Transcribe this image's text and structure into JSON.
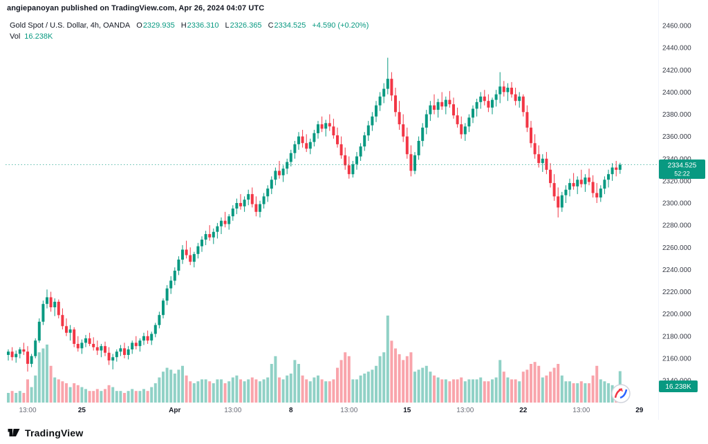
{
  "attribution": "angiepanoyan published on TradingView.com, Apr 26, 2024 04:07 UTC",
  "legend": {
    "symbol": "Gold Spot / U.S. Dollar, 4h, OANDA",
    "ohlc": [
      {
        "k": "O",
        "v": "2329.935"
      },
      {
        "k": "H",
        "v": "2336.310"
      },
      {
        "k": "L",
        "v": "2326.365"
      },
      {
        "k": "C",
        "v": "2334.525"
      }
    ],
    "change": "+4.590 (+0.20%)",
    "vol_label": "Vol",
    "vol_value": "16.238K"
  },
  "price_badge": {
    "price": "2334.525",
    "countdown": "52:22"
  },
  "volume_badge": "16.238K",
  "price_axis": {
    "labels": [
      "2460.000",
      "2440.000",
      "2420.000",
      "2400.000",
      "2380.000",
      "2360.000",
      "2340.000",
      "2320.000",
      "2300.000",
      "2280.000",
      "2260.000",
      "2240.000",
      "2220.000",
      "2200.000",
      "2180.000",
      "2160.000",
      "2140.000"
    ]
  },
  "time_axis": [
    {
      "label": "13:00",
      "i": 5,
      "minor": true
    },
    {
      "label": "25",
      "i": 19,
      "minor": false
    },
    {
      "label": "Apr",
      "i": 43,
      "minor": false
    },
    {
      "label": "13:00",
      "i": 58,
      "minor": true
    },
    {
      "label": "8",
      "i": 73,
      "minor": false
    },
    {
      "label": "13:00",
      "i": 88,
      "minor": true
    },
    {
      "label": "15",
      "i": 103,
      "minor": false
    },
    {
      "label": "13:00",
      "i": 118,
      "minor": true
    },
    {
      "label": "22",
      "i": 133,
      "minor": false
    },
    {
      "label": "13:00",
      "i": 148,
      "minor": true
    },
    {
      "label": "29",
      "i": 163,
      "minor": false
    }
  ],
  "footer": {
    "brand": "TradingView"
  },
  "colors": {
    "up": "#089981",
    "down": "#f23645",
    "axis_text": "#363a45",
    "badge": "#089981"
  },
  "chart_data": {
    "type": "candlestick+volume",
    "title": "Gold Spot / U.S. Dollar, 4h, OANDA",
    "timeframe": "4h",
    "ylim": [
      2140,
      2460
    ],
    "price_line": 2334.525,
    "last_bar": {
      "open": 2329.935,
      "high": 2336.31,
      "low": 2326.365,
      "close": 2334.525,
      "change": 4.59,
      "change_pct": 0.2,
      "volume_k": 16.238
    },
    "volume_unit": "K",
    "candles": [
      [
        2163,
        2168,
        2158,
        2166,
        5
      ],
      [
        2166,
        2170,
        2158,
        2161,
        6
      ],
      [
        2161,
        2167,
        2156,
        2164,
        5
      ],
      [
        2164,
        2170,
        2160,
        2168,
        6
      ],
      [
        2168,
        2174,
        2163,
        2166,
        5
      ],
      [
        2166,
        2171,
        2148,
        2155,
        12
      ],
      [
        2155,
        2164,
        2152,
        2162,
        8
      ],
      [
        2162,
        2178,
        2160,
        2176,
        14
      ],
      [
        2176,
        2196,
        2174,
        2193,
        26
      ],
      [
        2193,
        2212,
        2190,
        2209,
        28
      ],
      [
        2209,
        2222,
        2205,
        2215,
        30
      ],
      [
        2215,
        2220,
        2202,
        2206,
        19
      ],
      [
        2206,
        2214,
        2198,
        2211,
        13
      ],
      [
        2211,
        2213,
        2196,
        2199,
        12
      ],
      [
        2199,
        2205,
        2186,
        2189,
        11
      ],
      [
        2189,
        2196,
        2180,
        2183,
        10
      ],
      [
        2183,
        2190,
        2176,
        2186,
        8
      ],
      [
        2186,
        2188,
        2170,
        2173,
        10
      ],
      [
        2173,
        2180,
        2166,
        2169,
        9
      ],
      [
        2169,
        2177,
        2164,
        2174,
        8
      ],
      [
        2174,
        2181,
        2170,
        2178,
        7
      ],
      [
        2178,
        2183,
        2171,
        2173,
        6
      ],
      [
        2173,
        2179,
        2167,
        2170,
        6
      ],
      [
        2170,
        2176,
        2163,
        2167,
        7
      ],
      [
        2167,
        2173,
        2161,
        2171,
        6
      ],
      [
        2171,
        2175,
        2162,
        2165,
        7
      ],
      [
        2165,
        2170,
        2154,
        2158,
        9
      ],
      [
        2158,
        2164,
        2150,
        2161,
        8
      ],
      [
        2161,
        2168,
        2157,
        2166,
        6
      ],
      [
        2166,
        2172,
        2162,
        2169,
        6
      ],
      [
        2169,
        2174,
        2160,
        2163,
        5
      ],
      [
        2163,
        2171,
        2159,
        2168,
        6
      ],
      [
        2168,
        2176,
        2164,
        2174,
        7
      ],
      [
        2174,
        2180,
        2168,
        2171,
        6
      ],
      [
        2171,
        2178,
        2166,
        2176,
        6
      ],
      [
        2176,
        2183,
        2172,
        2180,
        7
      ],
      [
        2180,
        2185,
        2173,
        2176,
        6
      ],
      [
        2176,
        2184,
        2172,
        2182,
        8
      ],
      [
        2182,
        2192,
        2179,
        2190,
        10
      ],
      [
        2190,
        2202,
        2187,
        2199,
        13
      ],
      [
        2199,
        2214,
        2196,
        2212,
        16
      ],
      [
        2212,
        2226,
        2208,
        2223,
        18
      ],
      [
        2223,
        2234,
        2218,
        2230,
        17
      ],
      [
        2230,
        2242,
        2226,
        2239,
        15
      ],
      [
        2239,
        2252,
        2235,
        2249,
        17
      ],
      [
        2249,
        2262,
        2245,
        2258,
        19
      ],
      [
        2258,
        2266,
        2250,
        2253,
        14
      ],
      [
        2253,
        2260,
        2244,
        2247,
        11
      ],
      [
        2247,
        2256,
        2242,
        2254,
        10
      ],
      [
        2254,
        2264,
        2250,
        2261,
        11
      ],
      [
        2261,
        2270,
        2256,
        2267,
        12
      ],
      [
        2267,
        2275,
        2262,
        2272,
        12
      ],
      [
        2272,
        2280,
        2266,
        2269,
        11
      ],
      [
        2269,
        2277,
        2263,
        2274,
        10
      ],
      [
        2274,
        2282,
        2268,
        2279,
        12
      ],
      [
        2279,
        2287,
        2272,
        2284,
        12
      ],
      [
        2284,
        2292,
        2278,
        2281,
        10
      ],
      [
        2281,
        2290,
        2276,
        2288,
        11
      ],
      [
        2288,
        2298,
        2284,
        2295,
        13
      ],
      [
        2295,
        2304,
        2290,
        2300,
        14
      ],
      [
        2300,
        2308,
        2294,
        2297,
        12
      ],
      [
        2297,
        2306,
        2292,
        2303,
        11
      ],
      [
        2303,
        2312,
        2298,
        2308,
        12
      ],
      [
        2308,
        2314,
        2296,
        2299,
        13
      ],
      [
        2299,
        2306,
        2288,
        2292,
        12
      ],
      [
        2292,
        2302,
        2287,
        2299,
        11
      ],
      [
        2299,
        2309,
        2295,
        2306,
        12
      ],
      [
        2306,
        2316,
        2301,
        2313,
        13
      ],
      [
        2313,
        2324,
        2308,
        2321,
        20
      ],
      [
        2321,
        2332,
        2316,
        2329,
        24
      ],
      [
        2329,
        2338,
        2322,
        2325,
        13
      ],
      [
        2325,
        2334,
        2319,
        2331,
        12
      ],
      [
        2331,
        2340,
        2326,
        2337,
        14
      ],
      [
        2337,
        2348,
        2333,
        2345,
        15
      ],
      [
        2345,
        2356,
        2340,
        2353,
        22
      ],
      [
        2353,
        2364,
        2348,
        2360,
        20
      ],
      [
        2360,
        2366,
        2350,
        2354,
        14
      ],
      [
        2354,
        2362,
        2346,
        2349,
        12
      ],
      [
        2349,
        2358,
        2344,
        2355,
        11
      ],
      [
        2355,
        2366,
        2351,
        2363,
        13
      ],
      [
        2363,
        2374,
        2358,
        2371,
        14
      ],
      [
        2371,
        2378,
        2364,
        2367,
        12
      ],
      [
        2367,
        2375,
        2360,
        2372,
        11
      ],
      [
        2372,
        2380,
        2365,
        2369,
        11
      ],
      [
        2369,
        2376,
        2358,
        2361,
        12
      ],
      [
        2361,
        2368,
        2350,
        2353,
        18
      ],
      [
        2353,
        2360,
        2340,
        2343,
        22
      ],
      [
        2343,
        2350,
        2330,
        2334,
        26
      ],
      [
        2334,
        2342,
        2322,
        2326,
        24
      ],
      [
        2326,
        2338,
        2323,
        2335,
        12
      ],
      [
        2335,
        2346,
        2330,
        2342,
        12
      ],
      [
        2342,
        2354,
        2338,
        2351,
        14
      ],
      [
        2351,
        2364,
        2347,
        2361,
        15
      ],
      [
        2361,
        2374,
        2356,
        2370,
        16
      ],
      [
        2370,
        2382,
        2365,
        2378,
        17
      ],
      [
        2378,
        2392,
        2373,
        2388,
        19
      ],
      [
        2388,
        2400,
        2383,
        2396,
        24
      ],
      [
        2396,
        2408,
        2390,
        2403,
        26
      ],
      [
        2403,
        2431,
        2398,
        2412,
        45
      ],
      [
        2412,
        2418,
        2392,
        2397,
        32
      ],
      [
        2397,
        2404,
        2378,
        2382,
        28
      ],
      [
        2382,
        2392,
        2366,
        2371,
        25
      ],
      [
        2371,
        2380,
        2355,
        2360,
        22
      ],
      [
        2360,
        2368,
        2340,
        2344,
        24
      ],
      [
        2344,
        2352,
        2324,
        2329,
        26
      ],
      [
        2329,
        2346,
        2326,
        2343,
        16
      ],
      [
        2343,
        2360,
        2339,
        2356,
        17
      ],
      [
        2356,
        2372,
        2351,
        2368,
        18
      ],
      [
        2368,
        2384,
        2362,
        2380,
        19
      ],
      [
        2380,
        2392,
        2374,
        2388,
        16
      ],
      [
        2388,
        2398,
        2380,
        2384,
        14
      ],
      [
        2384,
        2394,
        2377,
        2391,
        13
      ],
      [
        2391,
        2400,
        2384,
        2387,
        12
      ],
      [
        2387,
        2396,
        2380,
        2393,
        12
      ],
      [
        2393,
        2401,
        2386,
        2389,
        11
      ],
      [
        2389,
        2395,
        2376,
        2379,
        12
      ],
      [
        2379,
        2386,
        2368,
        2371,
        12
      ],
      [
        2371,
        2378,
        2358,
        2362,
        13
      ],
      [
        2362,
        2372,
        2356,
        2369,
        11
      ],
      [
        2369,
        2380,
        2364,
        2377,
        12
      ],
      [
        2377,
        2388,
        2372,
        2385,
        12
      ],
      [
        2385,
        2394,
        2378,
        2391,
        12
      ],
      [
        2391,
        2400,
        2385,
        2396,
        13
      ],
      [
        2396,
        2402,
        2388,
        2392,
        11
      ],
      [
        2392,
        2398,
        2382,
        2386,
        11
      ],
      [
        2386,
        2395,
        2380,
        2393,
        12
      ],
      [
        2393,
        2402,
        2387,
        2398,
        13
      ],
      [
        2398,
        2418,
        2390,
        2405,
        22
      ],
      [
        2405,
        2410,
        2396,
        2400,
        16
      ],
      [
        2400,
        2408,
        2392,
        2404,
        13
      ],
      [
        2404,
        2409,
        2395,
        2398,
        12
      ],
      [
        2398,
        2404,
        2388,
        2392,
        12
      ],
      [
        2392,
        2400,
        2386,
        2396,
        11
      ],
      [
        2396,
        2398,
        2378,
        2382,
        16
      ],
      [
        2382,
        2388,
        2364,
        2368,
        17
      ],
      [
        2368,
        2374,
        2350,
        2354,
        20
      ],
      [
        2354,
        2362,
        2340,
        2344,
        21
      ],
      [
        2344,
        2352,
        2332,
        2336,
        19
      ],
      [
        2336,
        2344,
        2328,
        2340,
        13
      ],
      [
        2340,
        2346,
        2326,
        2330,
        14
      ],
      [
        2330,
        2336,
        2314,
        2318,
        16
      ],
      [
        2318,
        2326,
        2302,
        2306,
        18
      ],
      [
        2306,
        2314,
        2287,
        2296,
        20
      ],
      [
        2296,
        2310,
        2292,
        2307,
        14
      ],
      [
        2307,
        2316,
        2300,
        2312,
        11
      ],
      [
        2312,
        2322,
        2306,
        2318,
        11
      ],
      [
        2318,
        2327,
        2312,
        2315,
        10
      ],
      [
        2315,
        2324,
        2308,
        2321,
        10
      ],
      [
        2321,
        2330,
        2314,
        2317,
        11
      ],
      [
        2317,
        2326,
        2310,
        2323,
        10
      ],
      [
        2323,
        2331,
        2316,
        2319,
        10
      ],
      [
        2319,
        2325,
        2305,
        2309,
        14
      ],
      [
        2309,
        2318,
        2300,
        2305,
        19
      ],
      [
        2305,
        2316,
        2301,
        2313,
        12
      ],
      [
        2313,
        2324,
        2308,
        2321,
        11
      ],
      [
        2321,
        2330,
        2314,
        2326,
        10
      ],
      [
        2326,
        2336,
        2320,
        2332,
        9
      ],
      [
        2332,
        2338,
        2324,
        2329.935,
        8
      ],
      [
        2329.935,
        2336.31,
        2326.365,
        2334.525,
        16.238
      ]
    ]
  }
}
